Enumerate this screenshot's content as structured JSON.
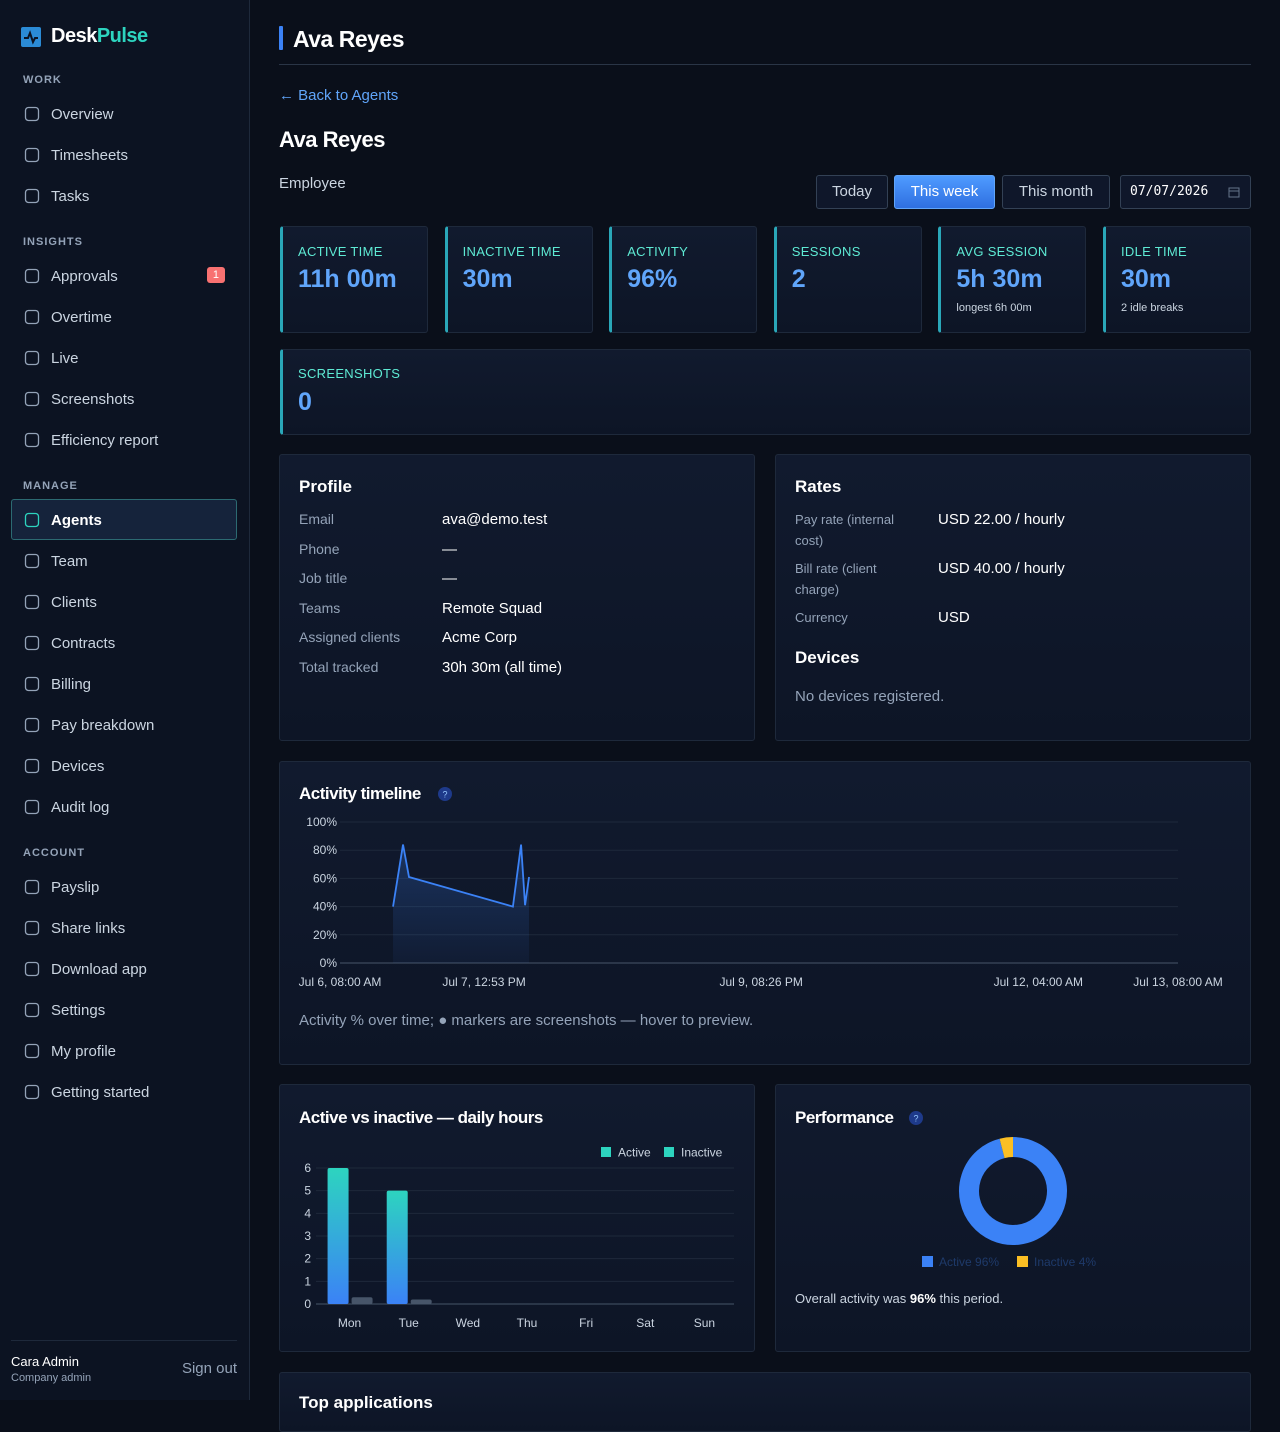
{
  "brand": {
    "name_a": "Desk",
    "name_b": "Pulse"
  },
  "nav": [
    {
      "heading": "WORK",
      "items": [
        {
          "label": "Overview"
        },
        {
          "label": "Timesheets"
        },
        {
          "label": "Tasks"
        }
      ]
    },
    {
      "heading": "INSIGHTS",
      "items": [
        {
          "label": "Approvals",
          "badge": 1
        },
        {
          "label": "Overtime"
        },
        {
          "label": "Live"
        },
        {
          "label": "Screenshots"
        },
        {
          "label": "Efficiency report"
        }
      ]
    },
    {
      "heading": "MANAGE",
      "items": [
        {
          "label": "Agents",
          "active": true
        },
        {
          "label": "Team"
        },
        {
          "label": "Clients"
        },
        {
          "label": "Contracts"
        },
        {
          "label": "Billing"
        },
        {
          "label": "Pay breakdown"
        },
        {
          "label": "Devices"
        },
        {
          "label": "Audit log"
        }
      ]
    },
    {
      "heading": "ACCOUNT",
      "items": [
        {
          "label": "Payslip"
        },
        {
          "label": "Share links"
        },
        {
          "label": "Download app"
        },
        {
          "label": "Settings"
        },
        {
          "label": "My profile"
        },
        {
          "label": "Getting started"
        }
      ]
    }
  ],
  "user": {
    "name": "Cara Admin",
    "role": "Company admin",
    "sign_out": "Sign out"
  },
  "page_title": "Ava Reyes",
  "back_link": "← Back to Agents",
  "agent": {
    "name": "Ava Reyes",
    "role": "Employee"
  },
  "ranges": {
    "options": [
      "Today",
      "This week",
      "This month"
    ],
    "selected": "This week",
    "date": "07/07/2026"
  },
  "stats": [
    {
      "label": "ACTIVE TIME",
      "value": "11h 00m"
    },
    {
      "label": "INACTIVE TIME",
      "value": "30m"
    },
    {
      "label": "ACTIVITY",
      "value": "96%"
    },
    {
      "label": "SESSIONS",
      "value": 2
    },
    {
      "label": "AVG SESSION",
      "value": "5h 30m",
      "note": "longest 6h 00m"
    },
    {
      "label": "IDLE TIME",
      "value": "30m",
      "note": "2 idle breaks"
    }
  ],
  "screenshots": {
    "label": "SCREENSHOTS",
    "value": 0
  },
  "profile": {
    "title": "Profile",
    "fields": [
      {
        "label": "Email",
        "value": "ava@demo.test"
      },
      {
        "label": "Phone",
        "value": "—"
      },
      {
        "label": "Job title",
        "value": "—"
      },
      {
        "label": "Teams",
        "value": "Remote Squad"
      },
      {
        "label": "Assigned clients",
        "value": "Acme Corp"
      },
      {
        "label": "Total tracked",
        "value": "30h 30m (all time)"
      }
    ]
  },
  "rates": {
    "title": "Rates",
    "fields": [
      {
        "label": "Pay rate (internal cost)",
        "value": "USD 22.00 / hourly"
      },
      {
        "label": "Bill rate (client charge)",
        "value": "USD 40.00 / hourly"
      },
      {
        "label": "Currency",
        "value": "USD"
      }
    ]
  },
  "devices": {
    "title": "Devices",
    "empty": "No devices registered."
  },
  "chart_data": [
    {
      "type": "line",
      "title": "Activity timeline",
      "help": "?",
      "x": [
        "07-06T18:38",
        "07-06T20:38",
        "07-06T21:50",
        "07-07T18:40",
        "07-07T20:18",
        "07-07T21:06",
        "07-07T21:54"
      ],
      "values": [
        40,
        84,
        61,
        40,
        84,
        41,
        61
      ],
      "color": "#3b82f6",
      "xlim": [
        "07-06T08:00",
        "07-13T08:00"
      ],
      "xticks": [
        {
          "value": "07-06T08:00",
          "label": "Jul 6, 08:00 AM"
        },
        {
          "value": "07-07T12:53",
          "label": "Jul 7, 12:53 PM"
        },
        {
          "value": "07-09T20:26",
          "label": "Jul 9, 08:26 PM"
        },
        {
          "value": "07-12T04:00",
          "label": "Jul 12, 04:00 AM"
        },
        {
          "value": "07-13T08:00",
          "label": "Jul 13, 08:00 AM"
        }
      ],
      "ylim": [
        0,
        100
      ],
      "yticks": [
        {
          "value": 0,
          "label": "0%"
        },
        {
          "value": 20,
          "label": "20%"
        },
        {
          "value": 40,
          "label": "40%"
        },
        {
          "value": 60,
          "label": "60%"
        },
        {
          "value": 80,
          "label": "80%"
        },
        {
          "value": 100,
          "label": "100%"
        }
      ],
      "grid": true,
      "caption": "Activity % over time; ● markers are screenshots — hover to preview."
    },
    {
      "type": "bar",
      "title": "Active vs inactive — daily hours",
      "categories": [
        "Mon",
        "Tue",
        "Wed",
        "Thu",
        "Fri",
        "Sat",
        "Sun"
      ],
      "series": [
        {
          "name": "Active",
          "color": "#2dd4bf",
          "values": [
            6,
            5,
            0,
            0,
            0,
            0,
            0
          ]
        },
        {
          "name": "Inactive",
          "color": "#475569",
          "values": [
            0.3,
            0.2,
            0,
            0,
            0,
            0,
            0
          ]
        }
      ],
      "ylim": [
        0,
        6
      ],
      "yticks": [
        0,
        1,
        2,
        3,
        4,
        5,
        6
      ],
      "grid": true,
      "legend": "top-right"
    },
    {
      "type": "pie",
      "title": "Performance",
      "help": "?",
      "categories": [
        "Active",
        "Inactive"
      ],
      "values": [
        96,
        4
      ],
      "value_labels": [
        "96%",
        "4%"
      ],
      "colors": [
        "#3b82f6",
        "#fbbf24"
      ],
      "caption_before": "Overall activity was",
      "caption_bold": "96%",
      "caption_after": "this period."
    }
  ],
  "top_applications": {
    "title": "Top applications"
  }
}
